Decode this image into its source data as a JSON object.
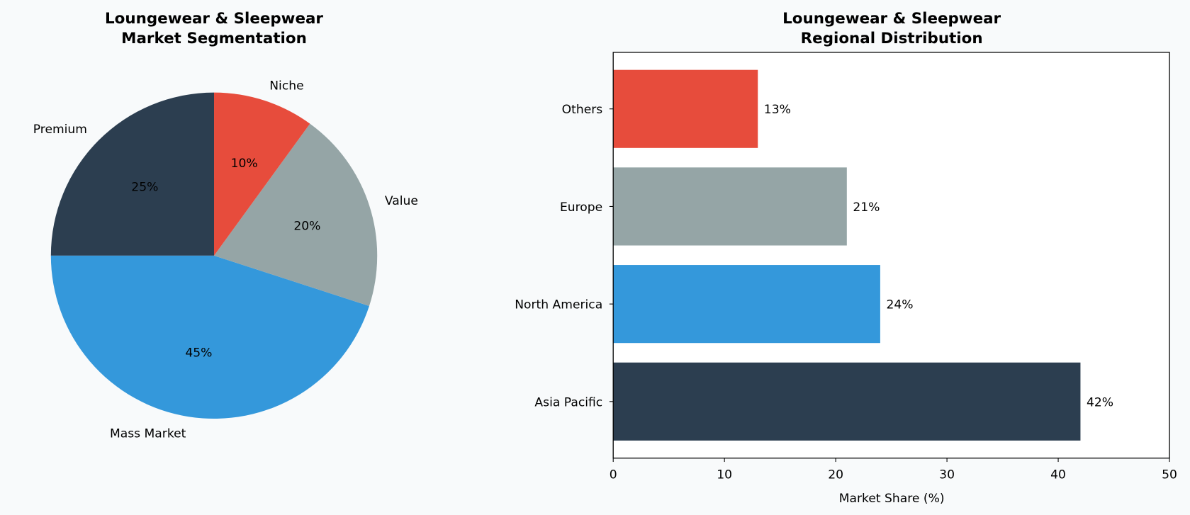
{
  "colors": {
    "background": "#f8fafb",
    "dark": "#2c3e50",
    "blue": "#3498db",
    "gray": "#95a5a6",
    "red": "#e74c3c"
  },
  "chart_data": [
    {
      "type": "pie",
      "title": [
        "Loungewear & Sleepwear",
        "Market Segmentation"
      ],
      "start_angle_deg": 90,
      "direction": "counterclockwise",
      "slices": [
        {
          "label": "Premium",
          "value": 25,
          "pct_label": "25%",
          "color": "#2c3e50"
        },
        {
          "label": "Mass Market",
          "value": 45,
          "pct_label": "45%",
          "color": "#3498db"
        },
        {
          "label": "Value",
          "value": 20,
          "pct_label": "20%",
          "color": "#95a5a6"
        },
        {
          "label": "Niche",
          "value": 10,
          "pct_label": "10%",
          "color": "#e74c3c"
        }
      ]
    },
    {
      "type": "bar",
      "orientation": "horizontal",
      "title": [
        "Loungewear & Sleepwear",
        "Regional Distribution"
      ],
      "categories": [
        "Asia Pacific",
        "North America",
        "Europe",
        "Others"
      ],
      "values": [
        42,
        24,
        21,
        13
      ],
      "data_labels": [
        "42%",
        "24%",
        "21%",
        "13%"
      ],
      "colors": [
        "#2c3e50",
        "#3498db",
        "#95a5a6",
        "#e74c3c"
      ],
      "xlabel": "Market Share (%)",
      "xlim": [
        0,
        50
      ],
      "xticks": [
        "0",
        "10",
        "20",
        "30",
        "40",
        "50"
      ],
      "grid": false
    }
  ]
}
